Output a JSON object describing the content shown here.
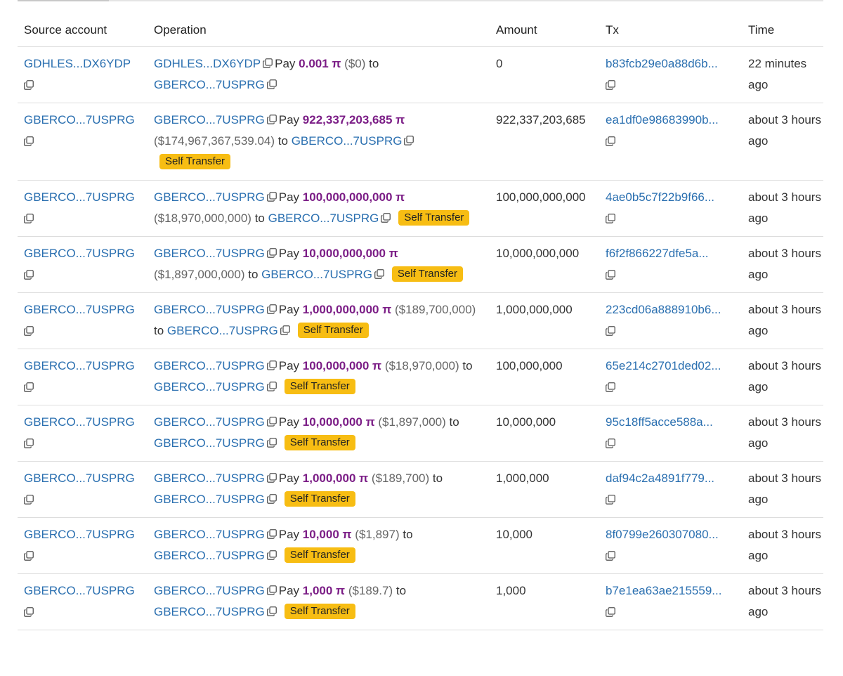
{
  "table": {
    "headers": [
      "Source account",
      "Operation",
      "Amount",
      "Tx",
      "Time"
    ],
    "rows": [
      {
        "source": "GDHLES...DX6YDP",
        "operation": {
          "from": "GDHLES...DX6YDP",
          "verb": "Pay",
          "amount": "0.001 π",
          "usd": "($0)",
          "to_word": "to",
          "to": "GBERCO...7USPRG"
        },
        "amount": "0",
        "tx": "b83fcb29e0a88d6b...",
        "time": "22 minutes ago"
      },
      {
        "source": "GBERCO...7USPRG",
        "operation": {
          "from": "GBERCO...7USPRG",
          "verb": "Pay",
          "amount": "922,337,203,685 π",
          "usd": "($174,967,367,539.04)",
          "to_word": "to",
          "to": "GBERCO...7USPRG",
          "badge": "Self Transfer"
        },
        "amount": "922,337,203,685",
        "tx": "ea1df0e98683990b...",
        "time": "about 3 hours ago"
      },
      {
        "source": "GBERCO...7USPRG",
        "operation": {
          "from": "GBERCO...7USPRG",
          "verb": "Pay",
          "amount": "100,000,000,000 π",
          "usd": "($18,970,000,000)",
          "to_word": "to",
          "to": "GBERCO...7USPRG",
          "badge": "Self Transfer"
        },
        "amount": "100,000,000,000",
        "tx": "4ae0b5c7f22b9f66...",
        "time": "about 3 hours ago"
      },
      {
        "source": "GBERCO...7USPRG",
        "operation": {
          "from": "GBERCO...7USPRG",
          "verb": "Pay",
          "amount": "10,000,000,000 π",
          "usd": "($1,897,000,000)",
          "to_word": "to",
          "to": "GBERCO...7USPRG",
          "badge": "Self Transfer"
        },
        "amount": "10,000,000,000",
        "tx": "f6f2f866227dfe5a...",
        "time": "about 3 hours ago"
      },
      {
        "source": "GBERCO...7USPRG",
        "operation": {
          "from": "GBERCO...7USPRG",
          "verb": "Pay",
          "amount": "1,000,000,000 π",
          "usd": "($189,700,000)",
          "to_word": "to",
          "to": "GBERCO...7USPRG",
          "badge": "Self Transfer"
        },
        "amount": "1,000,000,000",
        "tx": "223cd06a888910b6...",
        "time": "about 3 hours ago"
      },
      {
        "source": "GBERCO...7USPRG",
        "operation": {
          "from": "GBERCO...7USPRG",
          "verb": "Pay",
          "amount": "100,000,000 π",
          "usd": "($18,970,000)",
          "to_word": "to",
          "to": "GBERCO...7USPRG",
          "badge": "Self Transfer"
        },
        "amount": "100,000,000",
        "tx": "65e214c2701ded02...",
        "time": "about 3 hours ago"
      },
      {
        "source": "GBERCO...7USPRG",
        "operation": {
          "from": "GBERCO...7USPRG",
          "verb": "Pay",
          "amount": "10,000,000 π",
          "usd": "($1,897,000)",
          "to_word": "to",
          "to": "GBERCO...7USPRG",
          "badge": "Self Transfer"
        },
        "amount": "10,000,000",
        "tx": "95c18ff5acce588a...",
        "time": "about 3 hours ago"
      },
      {
        "source": "GBERCO...7USPRG",
        "operation": {
          "from": "GBERCO...7USPRG",
          "verb": "Pay",
          "amount": "1,000,000 π",
          "usd": "($189,700)",
          "to_word": "to",
          "to": "GBERCO...7USPRG",
          "badge": "Self Transfer"
        },
        "amount": "1,000,000",
        "tx": "daf94c2a4891f779...",
        "time": "about 3 hours ago"
      },
      {
        "source": "GBERCO...7USPRG",
        "operation": {
          "from": "GBERCO...7USPRG",
          "verb": "Pay",
          "amount": "10,000 π",
          "usd": "($1,897)",
          "to_word": "to",
          "to": "GBERCO...7USPRG",
          "badge": "Self Transfer"
        },
        "amount": "10,000",
        "tx": "8f0799e260307080...",
        "time": "about 3 hours ago"
      },
      {
        "source": "GBERCO...7USPRG",
        "operation": {
          "from": "GBERCO...7USPRG",
          "verb": "Pay",
          "amount": "1,000 π",
          "usd": "($189.7)",
          "to_word": "to",
          "to": "GBERCO...7USPRG",
          "badge": "Self Transfer"
        },
        "amount": "1,000",
        "tx": "b7e1ea63ae215559...",
        "time": "about 3 hours ago"
      }
    ]
  }
}
